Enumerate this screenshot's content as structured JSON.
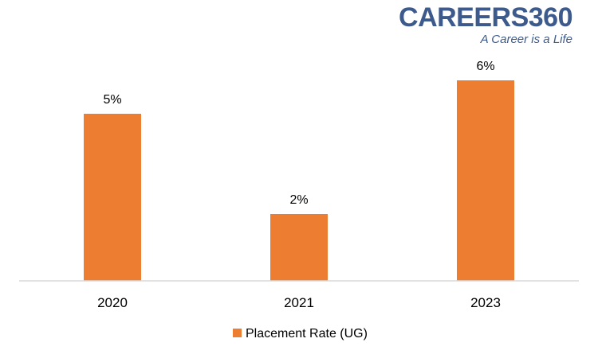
{
  "logo": {
    "name": "CAREERS360",
    "tagline": "A Career is a Life",
    "color": "#3d5a8c"
  },
  "chart_data": {
    "type": "bar",
    "title": "",
    "xlabel": "",
    "ylabel": "",
    "categories": [
      "2020",
      "2021",
      "2023"
    ],
    "series": [
      {
        "name": "Placement Rate (UG)",
        "values": [
          5,
          2,
          6
        ],
        "labels": [
          "5%",
          "2%",
          "6%"
        ],
        "color": "#ed7d31"
      }
    ],
    "ylim": [
      0,
      6
    ],
    "grid": false,
    "legend": "bottom-center"
  }
}
